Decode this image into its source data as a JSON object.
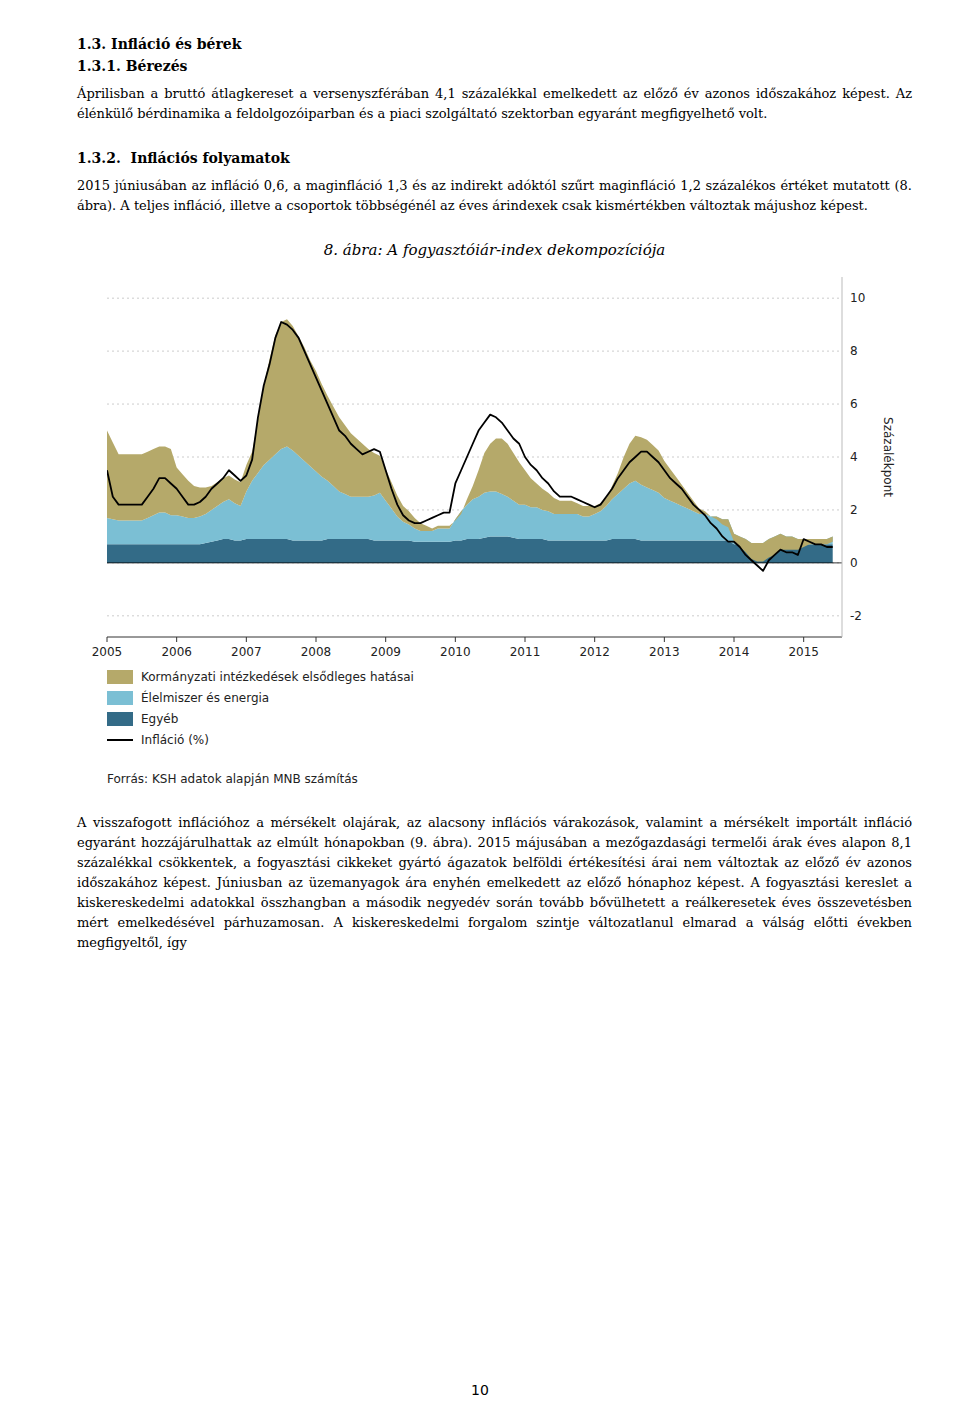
{
  "chart_data": {
    "type": "area",
    "stacked": true,
    "title": "8. ábra: A fogyasztóiár-index dekompozíciója",
    "y_label": "Százalékpont",
    "source": "Forrás: KSH adatok alapján MNB számítás",
    "grid": true,
    "legend": "bottom",
    "xlim": [
      2005,
      2015.55
    ],
    "xticks": [
      2005,
      2006,
      2007,
      2008,
      2009,
      2010,
      2011,
      2012,
      2013,
      2014,
      2015
    ],
    "ylim": [
      -2.8,
      10.8
    ],
    "yticks": [
      -2,
      0,
      2,
      4,
      6,
      8,
      10
    ],
    "x": [
      2005,
      2005.0833333333,
      2005.1666666667,
      2005.25,
      2005.3333333333,
      2005.4166666667,
      2005.5,
      2005.5833333333,
      2005.6666666667,
      2005.75,
      2005.8333333333,
      2005.9166666667,
      2006,
      2006.0833333333,
      2006.1666666667,
      2006.25,
      2006.3333333333,
      2006.4166666667,
      2006.5,
      2006.5833333333,
      2006.6666666667,
      2006.75,
      2006.8333333333,
      2006.9166666667,
      2007,
      2007.0833333333,
      2007.1666666667,
      2007.25,
      2007.3333333333,
      2007.4166666667,
      2007.5,
      2007.5833333333,
      2007.6666666667,
      2007.75,
      2007.8333333333,
      2007.9166666667,
      2008,
      2008.0833333333,
      2008.1666666667,
      2008.25,
      2008.3333333333,
      2008.4166666667,
      2008.5,
      2008.5833333333,
      2008.6666666667,
      2008.75,
      2008.8333333333,
      2008.9166666667,
      2009,
      2009.0833333333,
      2009.1666666667,
      2009.25,
      2009.3333333333,
      2009.4166666667,
      2009.5,
      2009.5833333333,
      2009.6666666667,
      2009.75,
      2009.8333333333,
      2009.9166666667,
      2010,
      2010.0833333333,
      2010.1666666667,
      2010.25,
      2010.3333333333,
      2010.4166666667,
      2010.5,
      2010.5833333333,
      2010.6666666667,
      2010.75,
      2010.8333333333,
      2010.9166666667,
      2011,
      2011.0833333333,
      2011.1666666667,
      2011.25,
      2011.3333333333,
      2011.4166666667,
      2011.5,
      2011.5833333333,
      2011.6666666667,
      2011.75,
      2011.8333333333,
      2011.9166666667,
      2012,
      2012.0833333333,
      2012.1666666667,
      2012.25,
      2012.3333333333,
      2012.4166666667,
      2012.5,
      2012.5833333333,
      2012.6666666667,
      2012.75,
      2012.8333333333,
      2012.9166666667,
      2013,
      2013.0833333333,
      2013.1666666667,
      2013.25,
      2013.3333333333,
      2013.4166666667,
      2013.5,
      2013.5833333333,
      2013.6666666667,
      2013.75,
      2013.8333333333,
      2013.9166666667,
      2014,
      2014.0833333333,
      2014.1666666667,
      2014.25,
      2014.3333333333,
      2014.4166666667,
      2014.5,
      2014.5833333333,
      2014.6666666667,
      2014.75,
      2014.8333333333,
      2014.9166666667,
      2015,
      2015.0833333333,
      2015.1666666667,
      2015.25,
      2015.3333333333,
      2015.4166666667
    ],
    "series": [
      {
        "name": "Egyéb",
        "type": "area",
        "color": "#336B87",
        "values": [
          0.7,
          0.7,
          0.7,
          0.7,
          0.7,
          0.7,
          0.7,
          0.7,
          0.7,
          0.7,
          0.7,
          0.7,
          0.7,
          0.7,
          0.7,
          0.7,
          0.7,
          0.75,
          0.8,
          0.85,
          0.9,
          0.9,
          0.85,
          0.85,
          0.9,
          0.9,
          0.9,
          0.9,
          0.9,
          0.9,
          0.9,
          0.9,
          0.85,
          0.85,
          0.85,
          0.85,
          0.85,
          0.85,
          0.9,
          0.9,
          0.9,
          0.9,
          0.9,
          0.9,
          0.9,
          0.9,
          0.85,
          0.85,
          0.85,
          0.85,
          0.85,
          0.85,
          0.85,
          0.8,
          0.8,
          0.8,
          0.8,
          0.8,
          0.8,
          0.8,
          0.85,
          0.85,
          0.9,
          0.9,
          0.9,
          0.95,
          1.0,
          1.0,
          1.0,
          1.0,
          0.95,
          0.9,
          0.9,
          0.9,
          0.9,
          0.9,
          0.85,
          0.85,
          0.85,
          0.85,
          0.85,
          0.85,
          0.85,
          0.85,
          0.85,
          0.85,
          0.85,
          0.9,
          0.9,
          0.9,
          0.9,
          0.9,
          0.85,
          0.85,
          0.85,
          0.85,
          0.85,
          0.85,
          0.85,
          0.85,
          0.85,
          0.85,
          0.85,
          0.85,
          0.85,
          0.85,
          0.85,
          0.85,
          0.7,
          0.7,
          0.7,
          0.65,
          0.65,
          0.65,
          0.7,
          0.7,
          0.7,
          0.7,
          0.7,
          0.7,
          0.7,
          0.7,
          0.7,
          0.7,
          0.7,
          0.7
        ]
      },
      {
        "name": "Élelmiszer és energia",
        "type": "area",
        "color": "#7BBFD4",
        "values": [
          1.0,
          0.95,
          0.9,
          0.9,
          0.9,
          0.9,
          0.9,
          1.0,
          1.1,
          1.2,
          1.2,
          1.1,
          1.1,
          1.05,
          1.0,
          1.0,
          1.05,
          1.1,
          1.2,
          1.3,
          1.4,
          1.5,
          1.4,
          1.3,
          1.8,
          2.2,
          2.5,
          2.8,
          3.0,
          3.2,
          3.4,
          3.5,
          3.4,
          3.2,
          3.0,
          2.8,
          2.6,
          2.4,
          2.2,
          2.0,
          1.8,
          1.7,
          1.6,
          1.6,
          1.6,
          1.6,
          1.7,
          1.8,
          1.5,
          1.2,
          0.9,
          0.7,
          0.6,
          0.5,
          0.4,
          0.4,
          0.4,
          0.5,
          0.5,
          0.5,
          0.8,
          1.1,
          1.3,
          1.5,
          1.6,
          1.7,
          1.7,
          1.7,
          1.6,
          1.5,
          1.4,
          1.3,
          1.3,
          1.2,
          1.2,
          1.1,
          1.1,
          1.0,
          1.0,
          1.0,
          1.0,
          1.0,
          0.9,
          0.9,
          1.0,
          1.1,
          1.3,
          1.5,
          1.7,
          1.9,
          2.1,
          2.2,
          2.1,
          2.0,
          1.9,
          1.8,
          1.6,
          1.5,
          1.4,
          1.3,
          1.2,
          1.1,
          1.0,
          1.0,
          0.9,
          0.9,
          0.8,
          0.8,
          0.4,
          0.3,
          0.2,
          0.1,
          0.1,
          0.1,
          0.2,
          0.3,
          0.4,
          0.3,
          0.3,
          0.2,
          0.2,
          0.2,
          0.2,
          0.2,
          0.2,
          0.3
        ]
      },
      {
        "name": "Kormányzati intézkedések elsődleges hatásai",
        "type": "area",
        "color": "#B5A96A",
        "values": [
          3.3,
          2.9,
          2.5,
          2.5,
          2.5,
          2.5,
          2.5,
          2.5,
          2.5,
          2.5,
          2.5,
          2.5,
          1.8,
          1.6,
          1.4,
          1.2,
          1.1,
          1.0,
          0.9,
          0.9,
          0.9,
          0.9,
          0.9,
          0.9,
          1.0,
          1.1,
          2.0,
          3.0,
          3.8,
          4.5,
          4.8,
          4.8,
          4.7,
          4.5,
          4.3,
          4.0,
          3.8,
          3.5,
          3.2,
          3.0,
          2.8,
          2.6,
          2.4,
          2.2,
          2.0,
          1.8,
          1.6,
          1.4,
          1.2,
          1.0,
          0.8,
          0.6,
          0.5,
          0.4,
          0.3,
          0.2,
          0.1,
          0.1,
          0.1,
          0.1,
          -0.05,
          -0.1,
          0.2,
          0.5,
          1.0,
          1.5,
          1.8,
          2.0,
          2.1,
          2.0,
          1.8,
          1.6,
          1.3,
          1.1,
          0.9,
          0.8,
          0.7,
          0.6,
          0.5,
          0.5,
          0.5,
          0.4,
          0.4,
          0.4,
          0.3,
          0.3,
          0.3,
          0.5,
          0.8,
          1.2,
          1.5,
          1.7,
          1.8,
          1.8,
          1.7,
          1.6,
          1.4,
          1.2,
          1.0,
          0.8,
          0.6,
          0.4,
          0.2,
          0.1,
          0.0,
          -0.1,
          -0.2,
          -0.3,
          -0.3,
          -0.4,
          -0.5,
          -0.6,
          -0.7,
          -0.7,
          -0.7,
          -0.7,
          -0.6,
          -0.5,
          -0.5,
          -0.4,
          -0.3,
          -0.2,
          -0.2,
          -0.2,
          -0.2,
          -0.2
        ]
      },
      {
        "name": "Infláció (%)",
        "type": "line",
        "color": "#000000",
        "values": [
          3.5,
          2.5,
          2.2,
          2.2,
          2.2,
          2.2,
          2.2,
          2.5,
          2.8,
          3.2,
          3.2,
          3.0,
          2.8,
          2.5,
          2.2,
          2.2,
          2.3,
          2.5,
          2.8,
          3.0,
          3.2,
          3.5,
          3.3,
          3.1,
          3.3,
          3.9,
          5.5,
          6.7,
          7.5,
          8.5,
          9.1,
          9.0,
          8.8,
          8.5,
          8.0,
          7.5,
          7.0,
          6.5,
          6.0,
          5.5,
          5.0,
          4.8,
          4.5,
          4.3,
          4.1,
          4.2,
          4.3,
          4.2,
          3.5,
          2.8,
          2.2,
          1.8,
          1.6,
          1.5,
          1.5,
          1.6,
          1.7,
          1.8,
          1.9,
          1.9,
          3.0,
          3.5,
          4.0,
          4.5,
          5.0,
          5.3,
          5.6,
          5.5,
          5.3,
          5.0,
          4.7,
          4.5,
          4.0,
          3.7,
          3.5,
          3.2,
          3.0,
          2.7,
          2.5,
          2.5,
          2.5,
          2.4,
          2.3,
          2.2,
          2.1,
          2.2,
          2.5,
          2.8,
          3.2,
          3.5,
          3.8,
          4.0,
          4.2,
          4.2,
          4.0,
          3.8,
          3.5,
          3.2,
          3.0,
          2.8,
          2.5,
          2.2,
          2.0,
          1.8,
          1.5,
          1.3,
          1.0,
          0.8,
          0.8,
          0.6,
          0.3,
          0.1,
          -0.1,
          -0.3,
          0.1,
          0.3,
          0.5,
          0.4,
          0.4,
          0.3,
          0.9,
          0.8,
          0.7,
          0.7,
          0.6,
          0.6
        ]
      }
    ]
  },
  "page_text": {
    "before_chart": [
      {
        "kind": "heading",
        "text": "1.3. Infláció és bérek"
      },
      {
        "kind": "heading",
        "text": "1.3.1. Bérezés"
      },
      {
        "kind": "paragraph",
        "text": "Áprilisban a bruttó átlagkereset a versenyszférában 4,1 százalékkal emelkedett az előző év azonos időszakához képest. Az élénkülő bérdinamika a feldolgozóiparban és a piaci szolgáltató szektorban egyaránt megfigyelhető volt."
      },
      {
        "kind": "heading",
        "text": "1.3.2.  Inflációs folyamatok"
      },
      {
        "kind": "paragraph",
        "text": "2015 júniusában az infláció 0,6, a maginfláció 1,3 és az indirekt adóktól szűrt maginfláció 1,2 százalékos értéket mutatott (8. ábra). A teljes infláció, illetve a csoportok többségénél az éves árindexek csak kismértékben változtak májushoz képest."
      }
    ],
    "after_chart": [
      {
        "kind": "paragraph",
        "text": "A visszafogott inflációhoz a mérsékelt olajárak, az alacsony inflációs várakozások, valamint a mérsékelt importált infláció egyaránt hozzájárulhattak az elmúlt hónapokban (9. ábra). 2015 májusában a mezőgazdasági termelői árak éves alapon 8,1 százalékkal csökkentek, a fogyasztási cikkeket gyártó ágazatok belföldi értékesítési árai nem változtak az előző év azonos időszakához képest. Júniusban az üzemanyagok ára enyhén emelkedett az előző hónaphoz képest. A fogyasztási kereslet a kiskereskedelmi adatokkal összhangban a második negyedév során tovább bővülhetett a reálkeresetek éves összevetésben mért emelkedésével párhuzamosan. A kiskereskedelmi forgalom szintje változatlanul elmarad a válság előtti években megfigyeltől, így"
      }
    ],
    "page_number": "10"
  }
}
